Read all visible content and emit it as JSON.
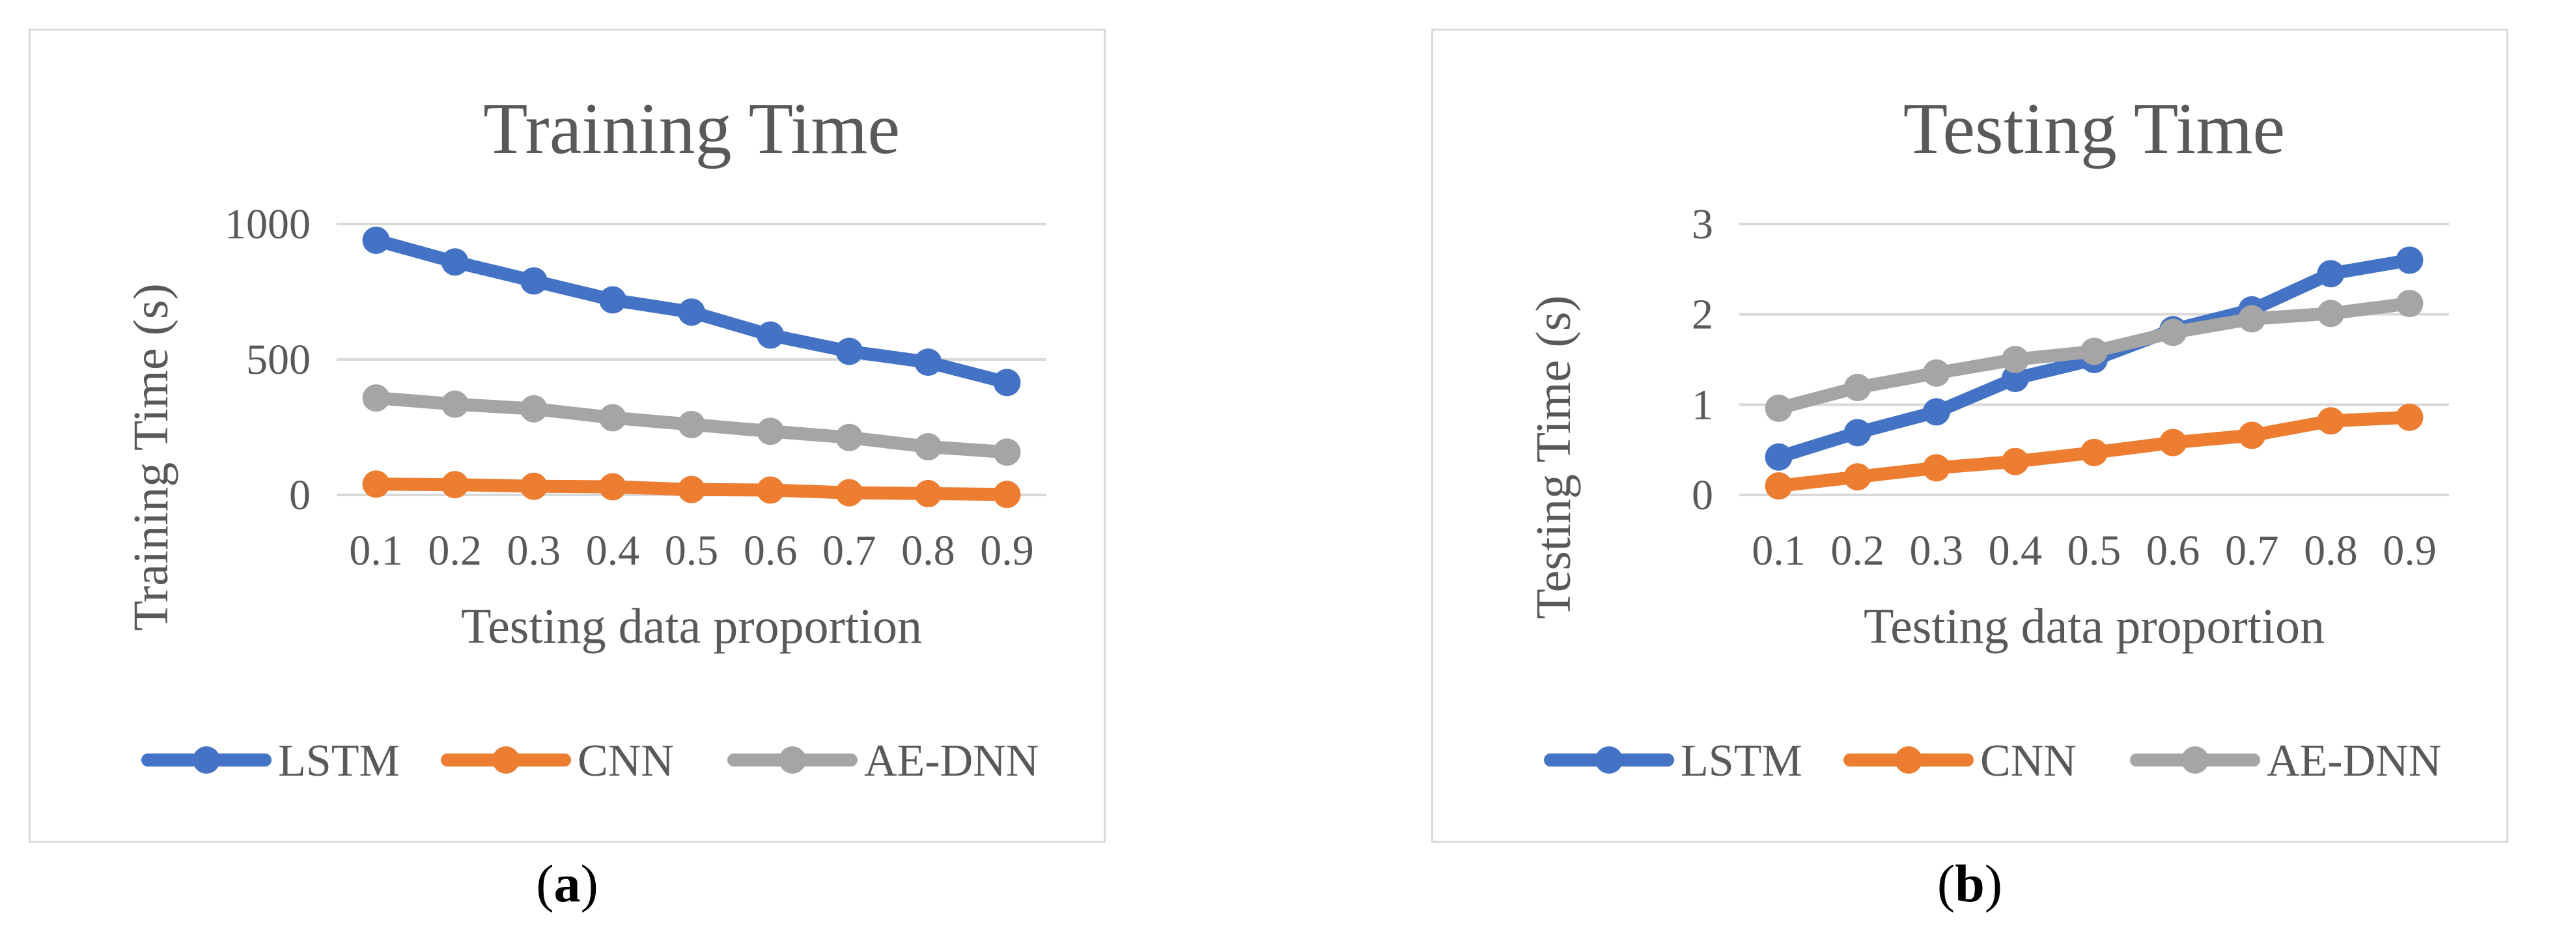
{
  "colors": {
    "lstm": "#4472c4",
    "cnn": "#ed7d31",
    "ae_dnn": "#a5a5a5",
    "text": "#595959",
    "grid": "#d9d9d9"
  },
  "captions": {
    "a_open": "(",
    "a_letter": "a",
    "a_close": ")",
    "b_open": "(",
    "b_letter": "b",
    "b_close": ")"
  },
  "chart_data": [
    {
      "type": "line",
      "title": "Training Time",
      "xlabel": "Testing data proportion",
      "ylabel": "Training Time (s)",
      "x": [
        "0.1",
        "0.2",
        "0.3",
        "0.4",
        "0.5",
        "0.6",
        "0.7",
        "0.8",
        "0.9"
      ],
      "ylim": [
        0,
        1000
      ],
      "yticks": [
        0,
        500,
        1000
      ],
      "grid": true,
      "legend_position": "bottom",
      "series": [
        {
          "name": "LSTM",
          "color": "#4472c4",
          "values": [
            940,
            860,
            790,
            720,
            675,
            590,
            530,
            490,
            415
          ]
        },
        {
          "name": "CNN",
          "color": "#ed7d31",
          "values": [
            40,
            38,
            32,
            30,
            20,
            18,
            8,
            5,
            2
          ]
        },
        {
          "name": "AE-DNN",
          "color": "#a5a5a5",
          "values": [
            358,
            335,
            318,
            285,
            260,
            235,
            212,
            178,
            158
          ]
        }
      ]
    },
    {
      "type": "line",
      "title": "Testing Time",
      "xlabel": "Testing data proportion",
      "ylabel": "Testing Time (s)",
      "x": [
        "0.1",
        "0.2",
        "0.3",
        "0.4",
        "0.5",
        "0.6",
        "0.7",
        "0.8",
        "0.9"
      ],
      "ylim": [
        0,
        3
      ],
      "yticks": [
        0,
        1,
        2,
        3
      ],
      "grid": true,
      "legend_position": "bottom",
      "series": [
        {
          "name": "LSTM",
          "color": "#4472c4",
          "values": [
            0.42,
            0.69,
            0.92,
            1.29,
            1.5,
            1.83,
            2.05,
            2.45,
            2.6
          ]
        },
        {
          "name": "CNN",
          "color": "#ed7d31",
          "values": [
            0.1,
            0.2,
            0.3,
            0.37,
            0.47,
            0.58,
            0.66,
            0.82,
            0.86
          ]
        },
        {
          "name": "AE-DNN",
          "color": "#a5a5a5",
          "values": [
            0.96,
            1.19,
            1.35,
            1.5,
            1.59,
            1.8,
            1.95,
            2.01,
            2.12
          ]
        }
      ]
    }
  ]
}
